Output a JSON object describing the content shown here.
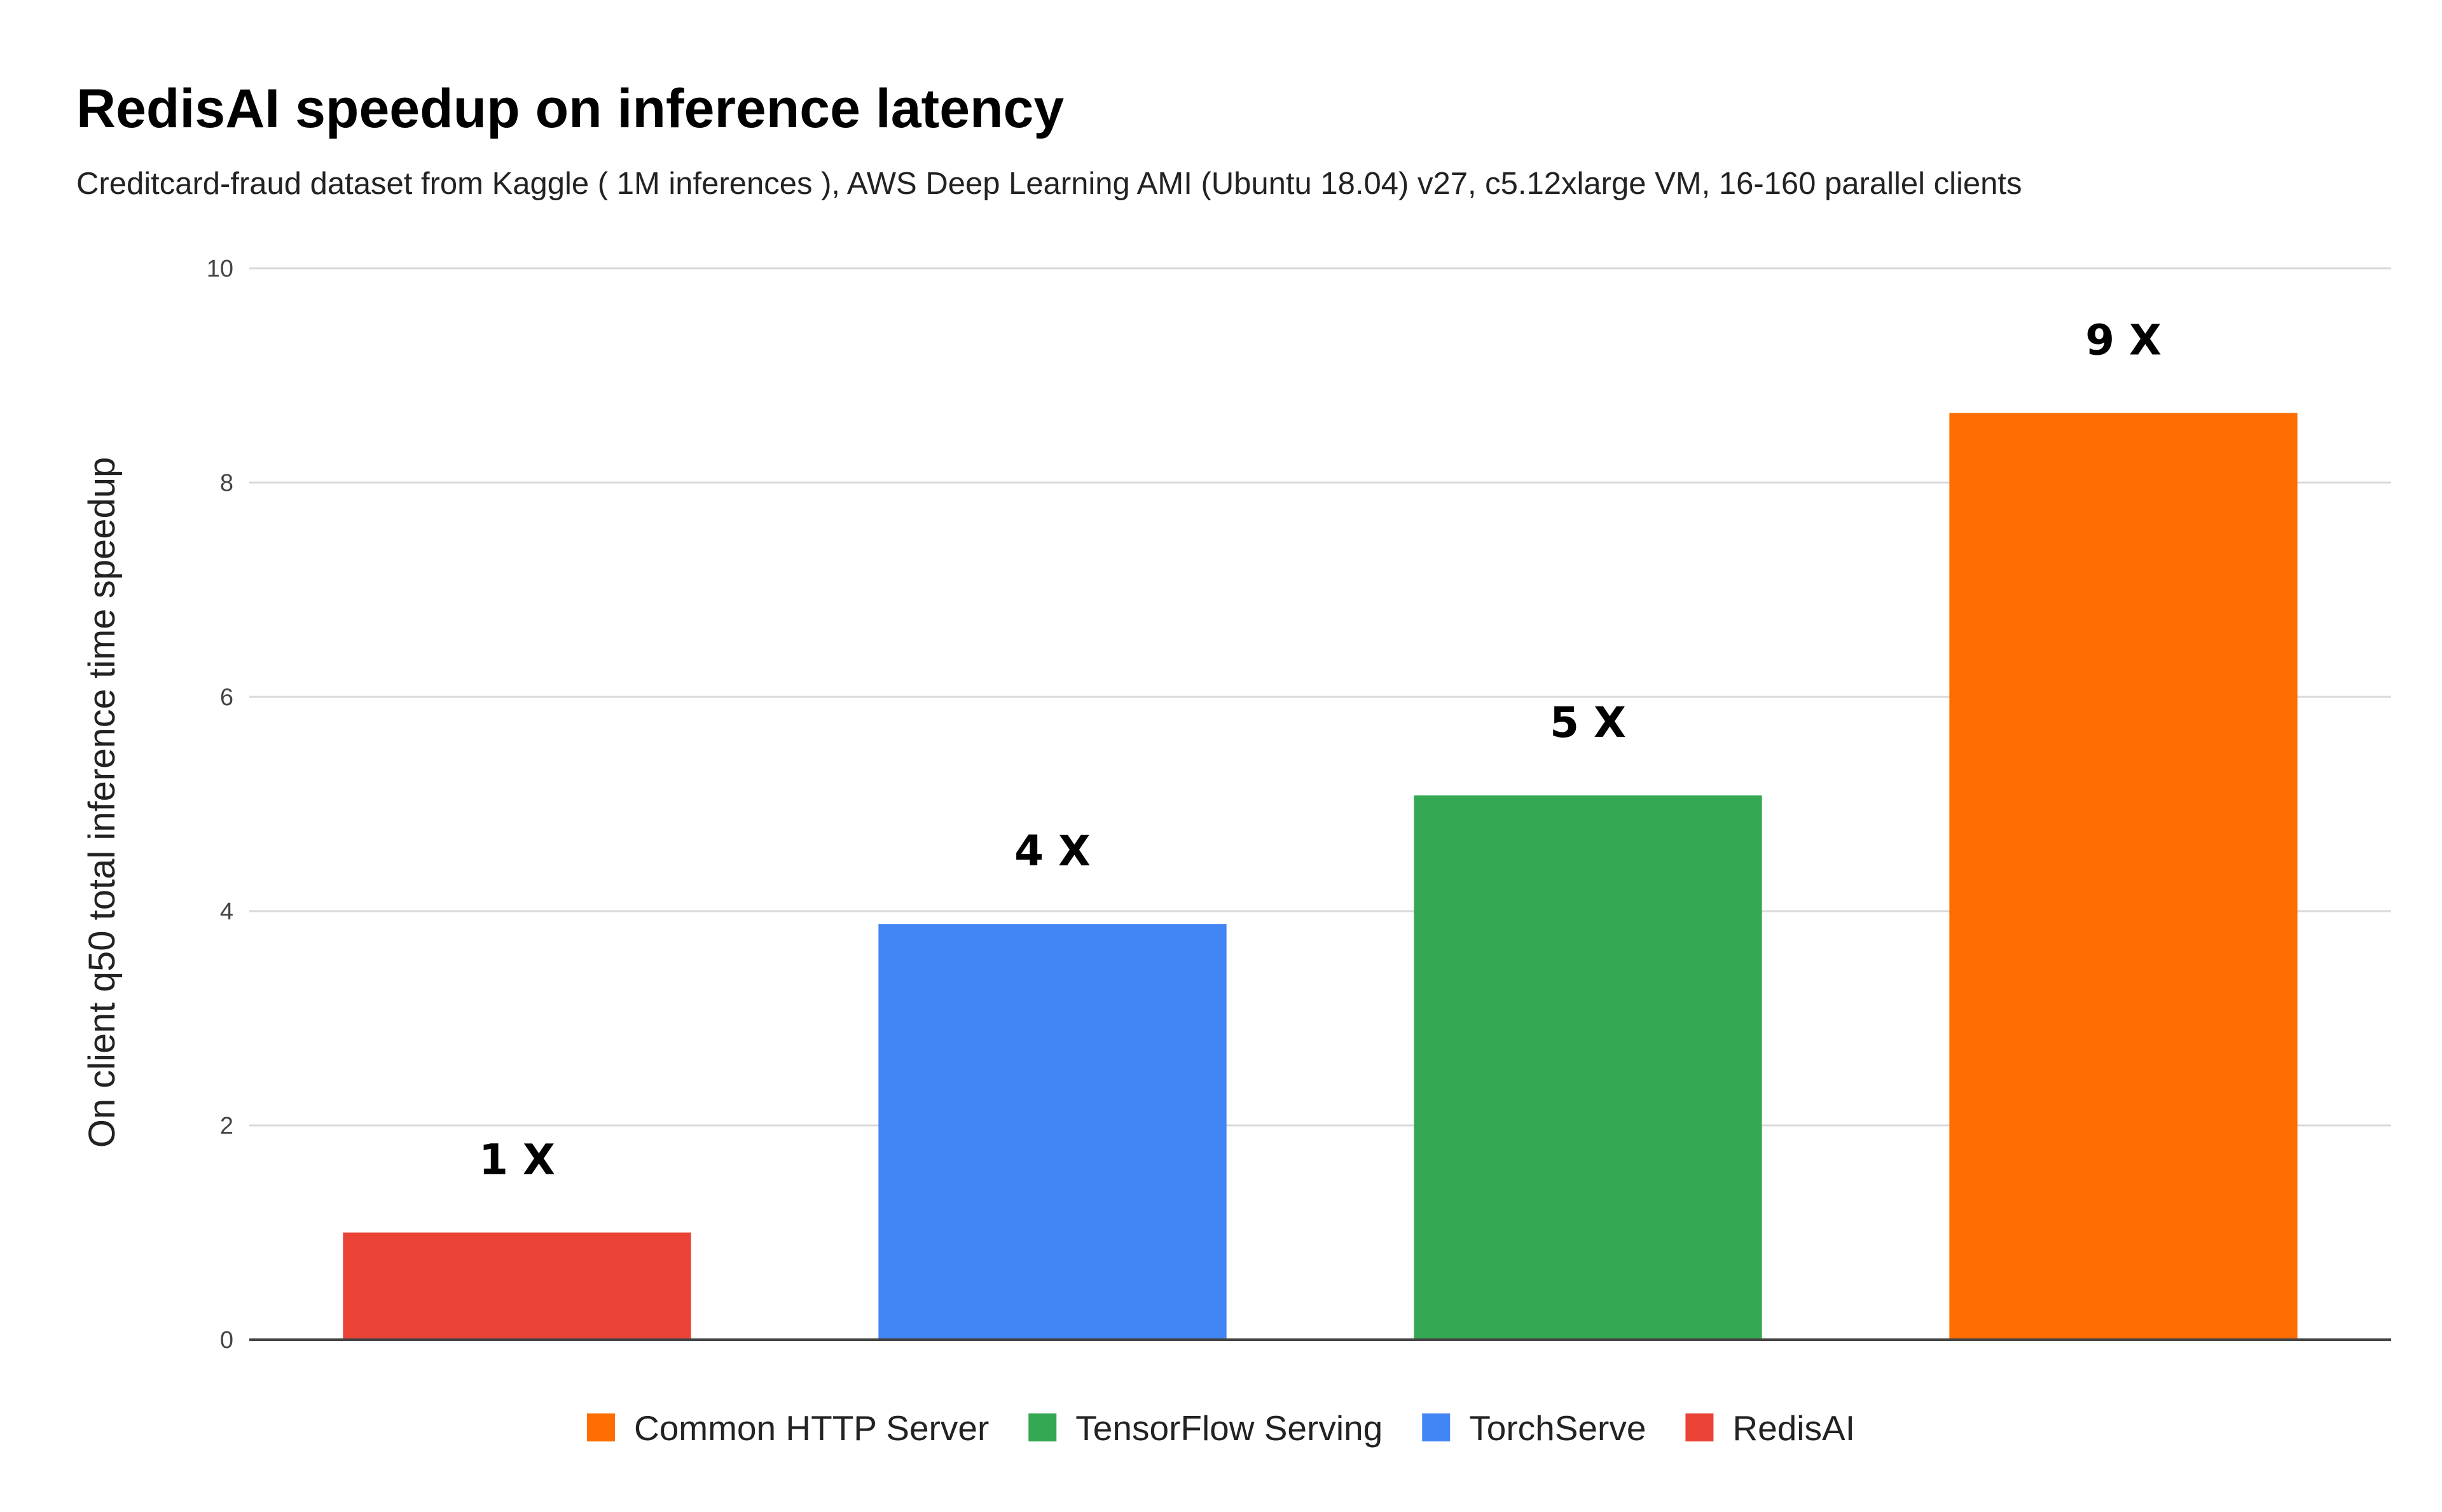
{
  "chart_data": {
    "type": "bar",
    "title": "RedisAI speedup on inference latency",
    "subtitle": "Creditcard-fraud dataset from Kaggle ( 1M inferences ), AWS Deep Learning AMI (Ubuntu 18.04) v27, c5.12xlarge VM, 16-160 parallel clients",
    "xlabel": "",
    "ylabel": "On client q50 total inference time speedup",
    "ylim": [
      0,
      10
    ],
    "yticks": [
      0,
      2,
      4,
      6,
      8,
      10
    ],
    "grid": true,
    "legend_position": "bottom",
    "categories": [
      "RedisAI",
      "TorchServe",
      "TensorFlow Serving",
      "Common HTTP Server"
    ],
    "values": [
      1.0,
      3.88,
      5.08,
      8.65
    ],
    "data_labels": [
      "1 X",
      "4 X",
      "5 X",
      "9 X"
    ],
    "colors": [
      "#ea4335",
      "#4285f4",
      "#34a853",
      "#ff6d01"
    ],
    "legend": [
      {
        "label": "Common HTTP Server",
        "color": "#ff6d01"
      },
      {
        "label": "TensorFlow Serving",
        "color": "#34a853"
      },
      {
        "label": "TorchServe",
        "color": "#4285f4"
      },
      {
        "label": "RedisAI",
        "color": "#ea4335"
      }
    ]
  }
}
